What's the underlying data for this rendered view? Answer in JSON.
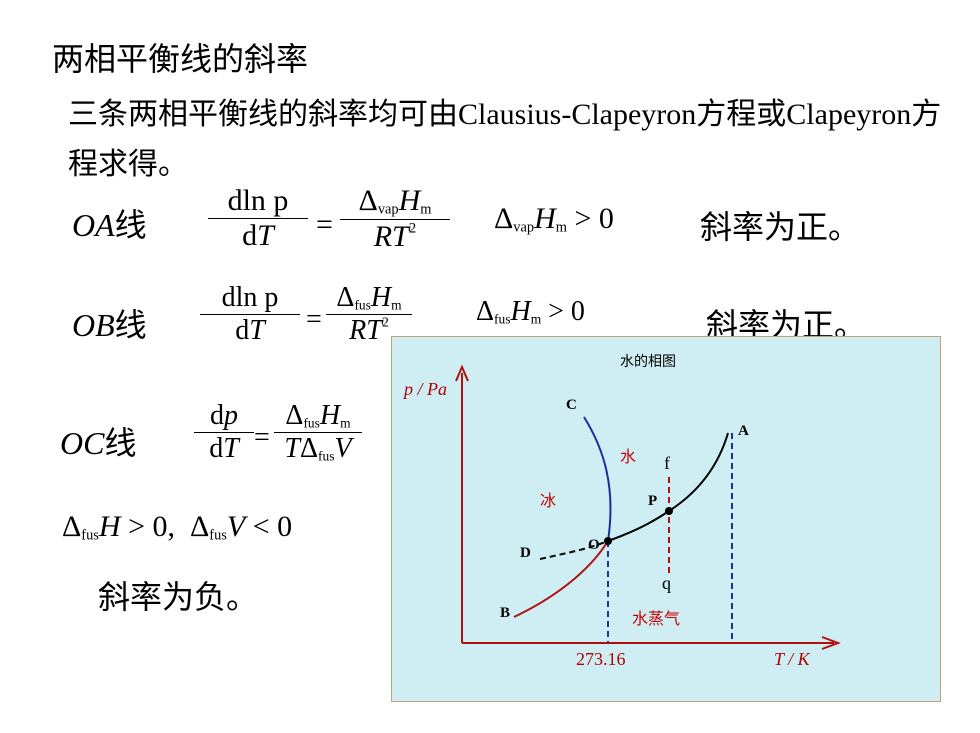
{
  "heading": "两相平衡线的斜率",
  "intro": "三条两相平衡线的斜率均可由Clausius-Clapeyron方程或Clapeyron方程求得。",
  "oa": {
    "label_var": "OA",
    "label_suffix": "线",
    "num": "dln p",
    "den_d": "d",
    "den_T": "T",
    "rhs_num_delta": "Δ",
    "rhs_num_sub": "vap",
    "rhs_num_H": "H",
    "rhs_num_m": "m",
    "rhs_den": "RT",
    "rhs_den_sup": "2",
    "cond": "Δ",
    "cond_sub": "vap",
    "cond_H": "H",
    "cond_m": "m",
    "cond_rel": " > 0",
    "slope": "斜率为正。"
  },
  "ob": {
    "label_var": "OB",
    "label_suffix": "线",
    "num": "dln p",
    "den_d": "d",
    "den_T": "T",
    "rhs_num_delta": "Δ",
    "rhs_num_sub": "fus",
    "rhs_num_H": "H",
    "rhs_num_m": "m",
    "rhs_den": "RT",
    "rhs_den_sup": "2",
    "cond": "Δ",
    "cond_sub": "fus",
    "cond_H": "H",
    "cond_m": "m",
    "cond_rel": " > 0",
    "slope": "斜率为正。"
  },
  "oc": {
    "label_var": "OC",
    "label_suffix": "线",
    "num_d": "d",
    "num_p": "p",
    "den_d": "d",
    "den_T": "T",
    "rhs_num_delta": "Δ",
    "rhs_num_sub": "fus",
    "rhs_num_H": "H",
    "rhs_num_m": "m",
    "rhs_den_T": "T",
    "rhs_den_delta": "Δ",
    "rhs_den_sub": "fus",
    "rhs_den_V": "V",
    "cond1_delta": "Δ",
    "cond1_sub": "fus",
    "cond1_H": "H",
    "cond1_rel": " > 0,",
    "cond2_delta": "Δ",
    "cond2_sub": "fus",
    "cond2_V": "V",
    "cond2_rel": " < 0",
    "slope": "斜率为负。"
  },
  "diagram": {
    "title": "水的相图",
    "y_axis": "p / Pa",
    "x_axis": "T / K",
    "x_tick": "273.16",
    "points": {
      "A": "A",
      "B": "B",
      "C": "C",
      "D": "D",
      "O": "O",
      "P": "P",
      "f": "f",
      "q": "q"
    },
    "regions": {
      "water": "水",
      "ice": "冰",
      "vapor": "水蒸气"
    },
    "colors": {
      "background": "#cfeef3",
      "border": "#c8a277",
      "region_text": "#cc0000",
      "axis_label": "#b00000",
      "oc_curve": "#1a2fa0",
      "ob_curve": "#b01010",
      "oa_curve": "#000000",
      "dashed_blue": "#1a2fa0",
      "dashed_red": "#b01010"
    }
  }
}
